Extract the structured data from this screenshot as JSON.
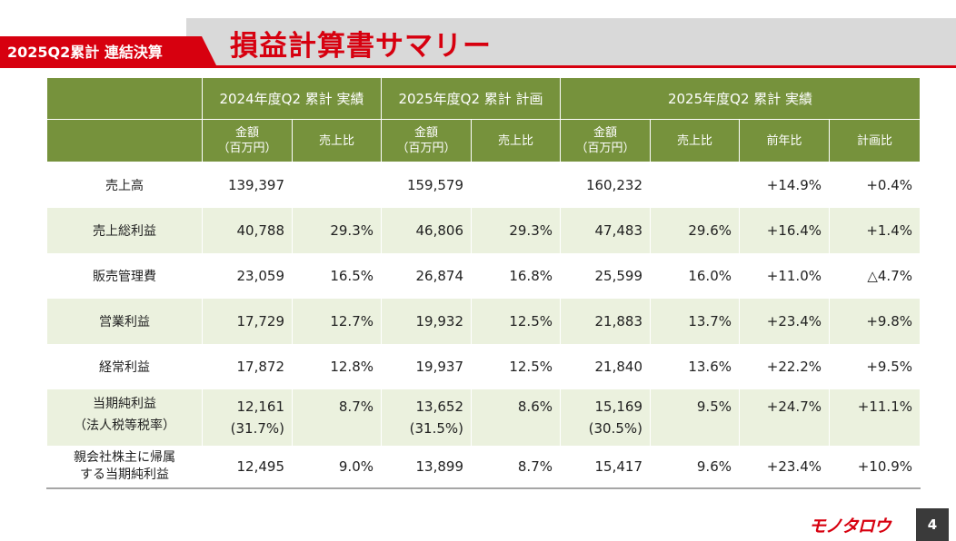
{
  "header": {
    "tag": "2025Q2累計 連結決算",
    "title": "損益計算書サマリー"
  },
  "colors": {
    "accent": "#d7000f",
    "header_green": "#76923c",
    "row_alt": "#ebf1de",
    "band_gray": "#d9d9d9"
  },
  "table": {
    "groups": [
      "2024年度Q2 累計 実績",
      "2025年度Q2 累計 計画",
      "2025年度Q2 累計 実績"
    ],
    "sub": {
      "amount_l1": "金額",
      "amount_l2": "（百万円）",
      "sales_ratio": "売上比",
      "yoy": "前年比",
      "vs_plan": "計画比"
    },
    "rows": [
      {
        "label": "売上高",
        "c": [
          "139,397",
          "",
          "159,579",
          "",
          "160,232",
          "",
          "+14.9%",
          "+0.4%"
        ]
      },
      {
        "label": "売上総利益",
        "c": [
          "40,788",
          "29.3%",
          "46,806",
          "29.3%",
          "47,483",
          "29.6%",
          "+16.4%",
          "+1.4%"
        ]
      },
      {
        "label": "販売管理費",
        "c": [
          "23,059",
          "16.5%",
          "26,874",
          "16.8%",
          "25,599",
          "16.0%",
          "+11.0%",
          "△4.7%"
        ]
      },
      {
        "label": "営業利益",
        "c": [
          "17,729",
          "12.7%",
          "19,932",
          "12.5%",
          "21,883",
          "13.7%",
          "+23.4%",
          "+9.8%"
        ]
      },
      {
        "label": "経常利益",
        "c": [
          "17,872",
          "12.8%",
          "19,937",
          "12.5%",
          "21,840",
          "13.6%",
          "+22.2%",
          "+9.5%"
        ]
      }
    ],
    "net_income": {
      "label_l1": "当期純利益",
      "label_l2": "（法人税等税率）",
      "c": [
        "12,161",
        "8.7%",
        "13,652",
        "8.6%",
        "15,169",
        "9.5%",
        "+24.7%",
        "+11.1%"
      ],
      "tax": [
        "(31.7%)",
        "(31.5%)",
        "(30.5%)"
      ]
    },
    "parent_income": {
      "label_l1": "親会社株主に帰属",
      "label_l2": "する当期純利益",
      "c": [
        "12,495",
        "9.0%",
        "13,899",
        "8.7%",
        "15,417",
        "9.6%",
        "+23.4%",
        "+10.9%"
      ]
    }
  },
  "footer": {
    "logo": "モノタロウ",
    "page": "4"
  }
}
